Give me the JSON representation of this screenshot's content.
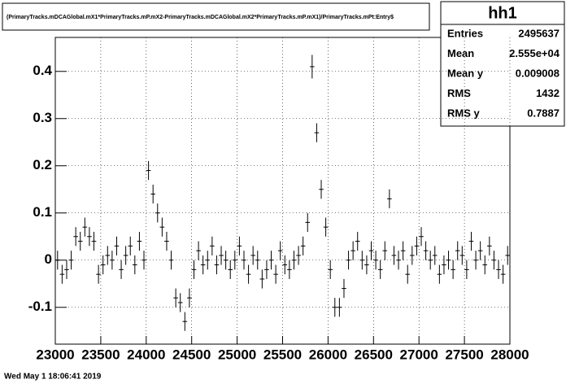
{
  "chart_data": {
    "type": "profile",
    "title": "(PrimaryTracks.mDCAGlobal.mX1*PrimaryTracks.mP.mX2-PrimaryTracks.mDCAGlobal.mX2*PrimaryTracks.mP.mX1)/PrimaryTracks.mPt:Entry$",
    "footer": "Wed May  1 18:06:41 2019",
    "stats": {
      "name": "hh1",
      "rows": [
        [
          "Entries",
          "2495637"
        ],
        [
          "Mean",
          "2.555e+04"
        ],
        [
          "Mean y",
          "0.009008"
        ],
        [
          "RMS",
          "1432"
        ],
        [
          "RMS y",
          "0.7887"
        ]
      ]
    },
    "grid": true,
    "color": "#000000",
    "xlim": [
      23000,
      28000
    ],
    "xticks": [
      23000,
      23500,
      24000,
      24500,
      25000,
      25500,
      26000,
      26500,
      27000,
      27500,
      28000
    ],
    "ylim": [
      -0.178,
      0.472
    ],
    "yticks": [
      -0.1,
      0,
      0.1,
      0.2,
      0.3,
      0.4
    ],
    "x": [
      23025,
      23075,
      23125,
      23175,
      23225,
      23275,
      23325,
      23375,
      23425,
      23475,
      23525,
      23575,
      23625,
      23675,
      23725,
      23775,
      23825,
      23875,
      23925,
      23975,
      24025,
      24075,
      24125,
      24175,
      24225,
      24275,
      24325,
      24375,
      24425,
      24475,
      24525,
      24575,
      24625,
      24675,
      24725,
      24775,
      24825,
      24875,
      24925,
      24975,
      25025,
      25075,
      25125,
      25175,
      25225,
      25275,
      25325,
      25375,
      25425,
      25475,
      25525,
      25575,
      25625,
      25675,
      25725,
      25775,
      25825,
      25875,
      25925,
      25975,
      26025,
      26075,
      26125,
      26175,
      26225,
      26275,
      26325,
      26375,
      26425,
      26475,
      26525,
      26575,
      26625,
      26675,
      26725,
      26775,
      26825,
      26875,
      26925,
      26975,
      27025,
      27075,
      27125,
      27175,
      27225,
      27275,
      27325,
      27375,
      27425,
      27475,
      27525,
      27575,
      27625,
      27675,
      27725,
      27775,
      27825,
      27875,
      27925,
      27975
    ],
    "values": [
      0.0,
      -0.03,
      -0.02,
      0.0,
      0.05,
      0.04,
      0.07,
      0.05,
      0.04,
      -0.03,
      -0.01,
      0.01,
      0.0,
      0.03,
      -0.02,
      0.01,
      0.03,
      -0.01,
      0.04,
      0.0,
      0.19,
      0.14,
      0.1,
      0.07,
      0.04,
      0.0,
      -0.08,
      -0.09,
      -0.13,
      -0.08,
      -0.02,
      0.02,
      -0.01,
      0.0,
      0.03,
      -0.01,
      0.01,
      0.0,
      -0.02,
      0.0,
      0.03,
      0.0,
      -0.03,
      0.01,
      0.0,
      -0.04,
      -0.02,
      0.0,
      -0.03,
      0.02,
      -0.01,
      -0.02,
      0.0,
      0.01,
      0.03,
      0.08,
      0.41,
      0.27,
      0.15,
      0.07,
      -0.02,
      -0.1,
      -0.1,
      -0.06,
      0.0,
      0.02,
      0.04,
      0.0,
      -0.01,
      0.02,
      0.0,
      -0.02,
      0.02,
      0.13,
      0.01,
      0.0,
      0.02,
      -0.03,
      0.01,
      0.03,
      0.05,
      0.02,
      0.0,
      0.01,
      -0.03,
      -0.01,
      0.0,
      -0.02,
      0.02,
      0.01,
      -0.02,
      0.04,
      0.0,
      0.02,
      -0.01,
      0.03,
      0.0,
      -0.02,
      -0.03,
      0.01
    ],
    "errors": [
      0.02,
      0.02,
      0.02,
      0.02,
      0.02,
      0.02,
      0.02,
      0.02,
      0.02,
      0.02,
      0.02,
      0.02,
      0.02,
      0.02,
      0.02,
      0.02,
      0.02,
      0.02,
      0.02,
      0.02,
      0.02,
      0.02,
      0.02,
      0.02,
      0.02,
      0.02,
      0.02,
      0.02,
      0.02,
      0.02,
      0.02,
      0.02,
      0.02,
      0.02,
      0.02,
      0.02,
      0.02,
      0.02,
      0.02,
      0.02,
      0.02,
      0.02,
      0.02,
      0.02,
      0.02,
      0.02,
      0.02,
      0.02,
      0.02,
      0.02,
      0.02,
      0.02,
      0.02,
      0.02,
      0.02,
      0.02,
      0.025,
      0.02,
      0.02,
      0.02,
      0.02,
      0.02,
      0.02,
      0.02,
      0.02,
      0.02,
      0.02,
      0.02,
      0.02,
      0.02,
      0.02,
      0.02,
      0.02,
      0.02,
      0.02,
      0.02,
      0.02,
      0.02,
      0.02,
      0.02,
      0.02,
      0.02,
      0.02,
      0.02,
      0.02,
      0.02,
      0.02,
      0.02,
      0.02,
      0.02,
      0.02,
      0.02,
      0.02,
      0.02,
      0.02,
      0.02,
      0.02,
      0.02,
      0.02,
      0.02
    ]
  }
}
